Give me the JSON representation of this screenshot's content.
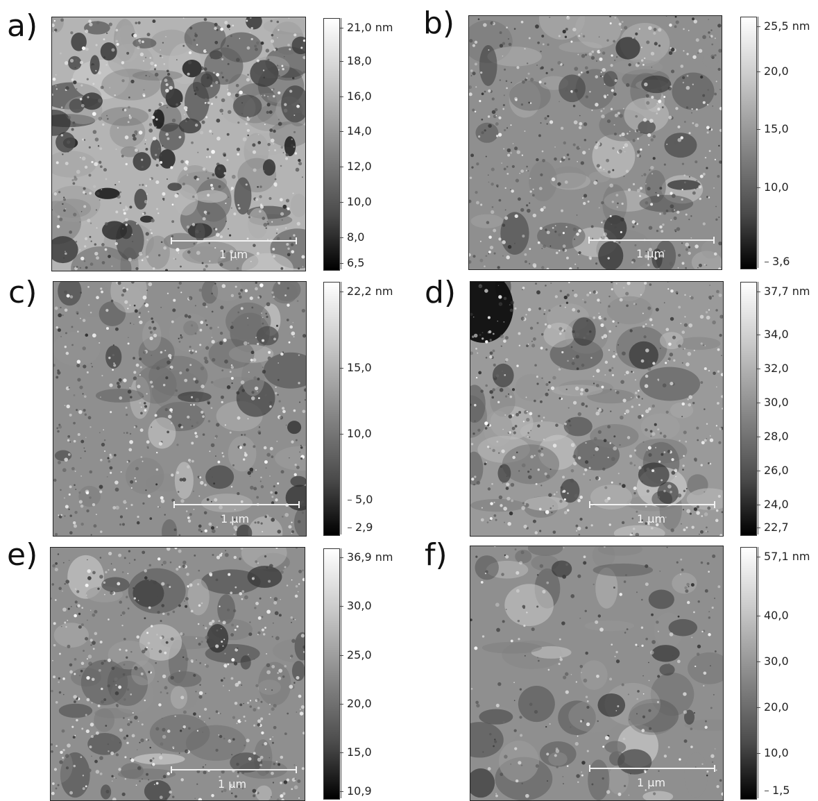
{
  "panels": [
    {
      "letter": "a)",
      "scale_bar_label": "1 μm",
      "colorbar_ticks": [
        "21,0 nm",
        "18,0",
        "16,0",
        "14,0",
        "12,0",
        "10,0",
        "8,0",
        "6,5"
      ],
      "seed": 11,
      "texture": "porous"
    },
    {
      "letter": "b)",
      "scale_bar_label": "1 μm",
      "colorbar_ticks": [
        "25,5 nm",
        "20,0",
        "15,0",
        "10,0",
        "3,6"
      ],
      "seed": 23,
      "texture": "grainy"
    },
    {
      "letter": "c)",
      "scale_bar_label": "1 μm",
      "colorbar_ticks": [
        "22,2 nm",
        "15,0",
        "10,0",
        "5,0",
        "2,9"
      ],
      "seed": 37,
      "texture": "grainy"
    },
    {
      "letter": "d)",
      "scale_bar_label": "1 μm",
      "colorbar_ticks": [
        "37,7 nm",
        "34,0",
        "32,0",
        "30,0",
        "28,0",
        "26,0",
        "24,0",
        "22,7"
      ],
      "seed": 41,
      "texture": "speckle"
    },
    {
      "letter": "e)",
      "scale_bar_label": "1 μm",
      "colorbar_ticks": [
        "36,9 nm",
        "30,0",
        "25,0",
        "20,0",
        "15,0",
        "10,9"
      ],
      "seed": 53,
      "texture": "grainy"
    },
    {
      "letter": "f)",
      "scale_bar_label": "1 μm",
      "colorbar_ticks": [
        "57,1 nm",
        "40,0",
        "30,0",
        "20,0",
        "10,0",
        "1,5"
      ],
      "seed": 67,
      "texture": "smooth"
    }
  ]
}
